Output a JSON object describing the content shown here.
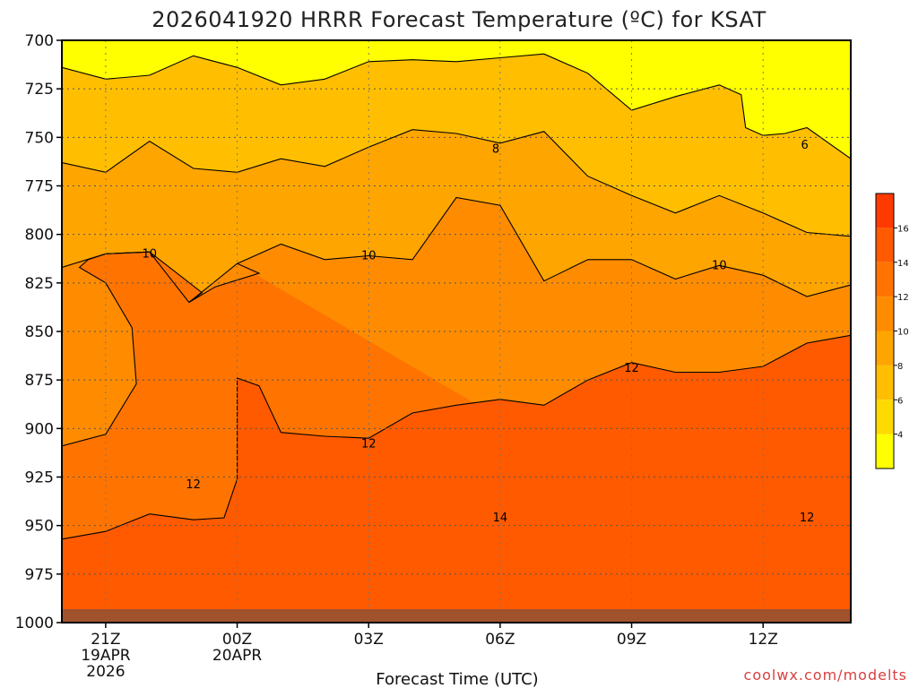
{
  "chart_data": {
    "type": "heatmap",
    "title": "2026041920 HRRR Forecast Temperature (ºC) for KSAT",
    "xlabel": "Forecast Time (UTC)",
    "ylabel": "",
    "credit": "coolwx.com/modelts",
    "y_ticks": [
      700,
      725,
      750,
      775,
      800,
      825,
      850,
      875,
      900,
      925,
      950,
      975,
      1000
    ],
    "ylim": [
      1000,
      700
    ],
    "x_ticks": [
      {
        "hour": 0,
        "label": "21Z",
        "sub1": "19APR",
        "sub2": "2026"
      },
      {
        "hour": 3,
        "label": "00Z",
        "sub1": "20APR",
        "sub2": ""
      },
      {
        "hour": 6,
        "label": "03Z",
        "sub1": "",
        "sub2": ""
      },
      {
        "hour": 9,
        "label": "06Z",
        "sub1": "",
        "sub2": ""
      },
      {
        "hour": 12,
        "label": "09Z",
        "sub1": "",
        "sub2": ""
      },
      {
        "hour": 15,
        "label": "12Z",
        "sub1": "",
        "sub2": ""
      }
    ],
    "xlim": [
      -1,
      17
    ],
    "grid": true,
    "colorbar": {
      "levels": [
        2,
        4,
        6,
        8,
        10,
        12,
        14,
        16,
        18
      ],
      "labels": [
        4,
        6,
        8,
        10,
        12,
        14,
        16
      ],
      "colors": [
        "#ffff00",
        "#ffda00",
        "#ffbf00",
        "#ffa500",
        "#ff8c00",
        "#ff7400",
        "#ff5a00",
        "#ff3a00"
      ]
    },
    "ground_color": "#a0522d",
    "contour_labels": [
      {
        "value": "6",
        "hour": 15.95,
        "p": 754
      },
      {
        "value": "8",
        "hour": 8.9,
        "p": 756
      },
      {
        "value": "10",
        "hour": 1.0,
        "p": 810
      },
      {
        "value": "10",
        "hour": 6.0,
        "p": 811
      },
      {
        "value": "10",
        "hour": 14.0,
        "p": 816
      },
      {
        "value": "12",
        "hour": 6.0,
        "p": 908
      },
      {
        "value": "12",
        "hour": 2.0,
        "p": 929
      },
      {
        "value": "12",
        "hour": 12.0,
        "p": 869
      },
      {
        "value": "12",
        "hour": 16.0,
        "p": 946
      },
      {
        "value": "14",
        "hour": 9.0,
        "p": 946
      }
    ],
    "isotherms": [
      {
        "value": 6,
        "fill": "#ffbf00",
        "points": [
          [
            -1,
            714
          ],
          [
            0,
            720
          ],
          [
            1,
            718
          ],
          [
            2,
            708
          ],
          [
            3,
            714
          ],
          [
            4,
            723
          ],
          [
            5,
            720
          ],
          [
            6,
            711
          ],
          [
            7,
            710
          ],
          [
            8,
            711
          ],
          [
            9,
            709
          ],
          [
            10,
            707
          ],
          [
            11,
            717
          ],
          [
            12,
            736
          ],
          [
            13,
            729
          ],
          [
            14,
            723
          ],
          [
            14.5,
            728
          ],
          [
            14.6,
            745
          ],
          [
            15,
            749
          ],
          [
            15.5,
            748
          ],
          [
            16,
            745
          ],
          [
            17,
            761
          ]
        ]
      },
      {
        "value": 8,
        "fill": "#ffa500",
        "points": [
          [
            -1,
            763
          ],
          [
            0,
            768
          ],
          [
            1,
            752
          ],
          [
            2,
            766
          ],
          [
            3,
            768
          ],
          [
            4,
            761
          ],
          [
            5,
            765
          ],
          [
            6,
            755
          ],
          [
            7,
            746
          ],
          [
            8,
            748
          ],
          [
            9,
            753
          ],
          [
            10,
            747
          ],
          [
            11,
            770
          ],
          [
            12,
            780
          ],
          [
            13,
            789
          ],
          [
            14,
            780
          ],
          [
            15,
            789
          ],
          [
            16,
            799
          ],
          [
            17,
            801
          ]
        ]
      },
      {
        "value": 10,
        "fill": "#ff8c00",
        "points": [
          [
            -1,
            817
          ],
          [
            0,
            810
          ],
          [
            1,
            809
          ],
          [
            1.9,
            835
          ],
          [
            3,
            815
          ],
          [
            4,
            805
          ],
          [
            5,
            813
          ],
          [
            6,
            811
          ],
          [
            7,
            813
          ],
          [
            8,
            781
          ],
          [
            9,
            785
          ],
          [
            10,
            824
          ],
          [
            11,
            813
          ],
          [
            12,
            813
          ],
          [
            13,
            823
          ],
          [
            14,
            816
          ],
          [
            15,
            821
          ],
          [
            16,
            832
          ],
          [
            17,
            826
          ]
        ]
      },
      {
        "value": 12,
        "fill": "#ff7400",
        "points": [
          [
            -1,
            909
          ],
          [
            0,
            903
          ],
          [
            0.7,
            877
          ],
          [
            0.6,
            848
          ],
          [
            0,
            825
          ],
          [
            -0.6,
            817
          ],
          [
            -0.4,
            813
          ],
          [
            0,
            810
          ],
          [
            1,
            809
          ],
          [
            2.2,
            830
          ],
          [
            1.9,
            835
          ],
          [
            2.5,
            827
          ],
          [
            3.5,
            820
          ],
          [
            3,
            815
          ],
          [
            3,
            815
          ]
        ]
      },
      {
        "value": 14,
        "fill": "#ff5a00",
        "points": [
          [
            -1,
            957
          ],
          [
            0,
            953
          ],
          [
            1,
            944
          ],
          [
            2,
            947
          ],
          [
            2.7,
            946
          ],
          [
            3,
            926
          ],
          [
            3.0,
            874
          ],
          [
            3.5,
            878
          ],
          [
            4,
            902
          ],
          [
            5,
            904
          ],
          [
            6,
            905
          ],
          [
            7,
            892
          ],
          [
            8,
            888
          ],
          [
            9,
            885
          ],
          [
            10,
            888
          ],
          [
            11,
            875
          ],
          [
            12,
            866
          ],
          [
            13,
            871
          ],
          [
            14,
            871
          ],
          [
            15,
            868
          ],
          [
            16,
            856
          ],
          [
            17,
            852
          ]
        ]
      }
    ]
  }
}
